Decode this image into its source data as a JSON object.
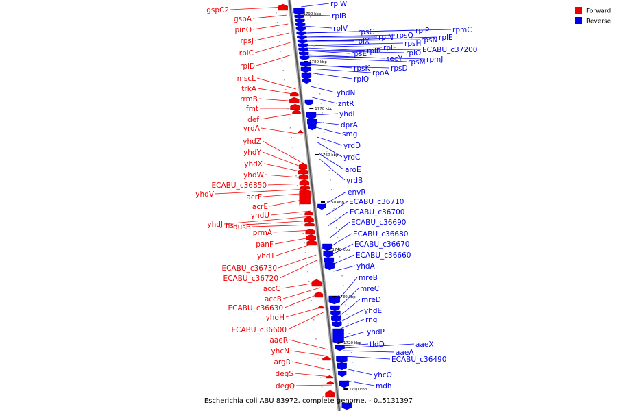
{
  "caption": "Escherichia coli ABU 83972, complete genome. - 0..5131397",
  "legend": [
    {
      "label": "Forward",
      "color": "#ee0000"
    },
    {
      "label": "Reverse",
      "color": "#0000ee"
    }
  ],
  "ticks": [
    "1790 kbp",
    "1780 kbp",
    "1770 kbp",
    "1760 kbp",
    "1750 kbp",
    "1740 kbp",
    "1730 kbp",
    "1720 kbp",
    "1710 kbp"
  ],
  "forward_genes": [
    "gspC2",
    "gspA",
    "pinO",
    "rpsJ",
    "rplC",
    "rplD",
    "mscL",
    "trkA",
    "rrmB",
    "fmt",
    "def",
    "yrdA",
    "yhdZ",
    "yhdY",
    "yhdX",
    "yhdW",
    "ECABU_c36850",
    "yhdV",
    "acrF",
    "acrE",
    "yhdU",
    "yhdJ",
    "fis",
    "dusB",
    "prmA",
    "panF",
    "yhdT",
    "ECABU_c36730",
    "ECABU_c36720",
    "accC",
    "accB",
    "ECABU_c36630",
    "yhdH",
    "ECABU_c36600",
    "aaeR",
    "yhcN",
    "argR",
    "degS",
    "degQ"
  ],
  "reverse_genes": [
    "rplW",
    "rplB",
    "rplV",
    "rpsC",
    "rplP",
    "rpmC",
    "rplN",
    "rpsQ",
    "rplX",
    "rpsN",
    "rplE",
    "rpsH",
    "rplF",
    "rplR",
    "rpsE",
    "rplO",
    "ECABU_c37200",
    "secY",
    "rpmJ",
    "rpsM",
    "rpsK",
    "rpsD",
    "rpoA",
    "rplQ",
    "yhdN",
    "zntR",
    "yhdL",
    "dprA",
    "smg",
    "yrdD",
    "yrdC",
    "aroE",
    "yrdB",
    "envR",
    "ECABU_c36710",
    "ECABU_c36700",
    "ECABU_c36690",
    "ECABU_c36680",
    "ECABU_c36670",
    "ECABU_c36660",
    "yhdA",
    "mreB",
    "mreC",
    "mreD",
    "yhdE",
    "rng",
    "yhdP",
    "tldD",
    "aaeX",
    "aaeA",
    "ECABU_c36490",
    "yhcO",
    "mdh"
  ]
}
